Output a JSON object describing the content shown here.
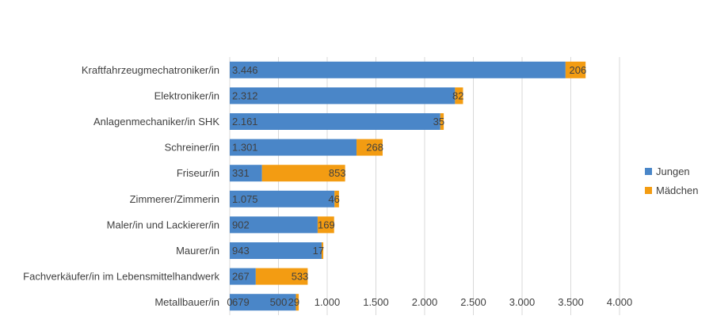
{
  "chart_data": {
    "type": "bar",
    "orientation": "horizontal",
    "stacked": true,
    "categories": [
      "Kraftfahrzeugmechatroniker/in",
      "Elektroniker/in",
      "Anlagenmechaniker/in SHK",
      "Schreiner/in",
      "Friseur/in",
      "Zimmerer/Zimmerin",
      "Maler/in und Lackierer/in",
      "Maurer/in",
      "Fachverkäufer/in im Lebensmittelhandwerk",
      "Metallbauer/in"
    ],
    "series": [
      {
        "name": "Jungen",
        "color": "#4a86c8",
        "values": [
          3446,
          2312,
          2161,
          1301,
          331,
          1075,
          902,
          943,
          267,
          679
        ],
        "labels": [
          "3.446",
          "2.312",
          "2.161",
          "1.301",
          "331",
          "1.075",
          "902",
          "943",
          "267",
          "679"
        ]
      },
      {
        "name": "Mädchen",
        "color": "#f39c12",
        "values": [
          206,
          82,
          35,
          268,
          853,
          46,
          169,
          17,
          533,
          29
        ],
        "labels": [
          "206",
          "82",
          "35",
          "268",
          "853",
          "46",
          "169",
          "17",
          "533",
          "29"
        ]
      }
    ],
    "xlim": [
      0,
      4000
    ],
    "xticks": [
      0,
      500,
      1000,
      1500,
      2000,
      2500,
      3000,
      3500,
      4000
    ],
    "xtick_labels": [
      "0",
      "500",
      "1.000",
      "1.500",
      "2.000",
      "2.500",
      "3.000",
      "3.500",
      "4.000"
    ],
    "title": "",
    "xlabel": "",
    "ylabel": "",
    "grid": "vertical",
    "legend_position": "right"
  }
}
